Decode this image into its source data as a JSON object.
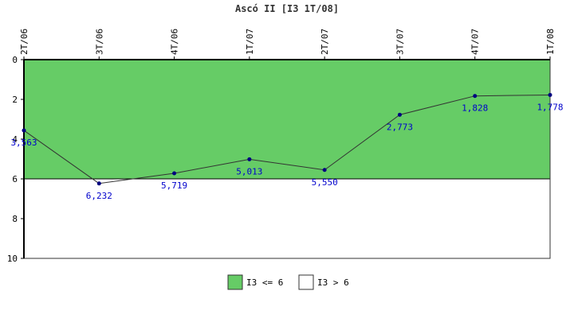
{
  "chart_data": {
    "type": "line",
    "title": "Ascó II [I3 1T/08]",
    "categories": [
      "2T/06",
      "3T/06",
      "4T/06",
      "1T/07",
      "2T/07",
      "3T/07",
      "4T/07",
      "1T/08"
    ],
    "series": [
      {
        "values": [
          3.563,
          6.232,
          5.719,
          5.013,
          5.55,
          2.773,
          1.828,
          1.778
        ],
        "labels": [
          "3,563",
          "6,232",
          "5,719",
          "5,013",
          "5,550",
          "2,773",
          "1,828",
          "1,778"
        ],
        "color": "#000080"
      }
    ],
    "y_axis": {
      "min": 0,
      "max": 10,
      "inverted": true,
      "ticks": [
        0,
        2,
        4,
        6,
        8,
        10
      ]
    },
    "x_tick_rotation": "vertical",
    "threshold": 6,
    "bands": [
      {
        "name": "I3 <= 6",
        "from": 0,
        "to": 6,
        "color": "#66cc66"
      },
      {
        "name": "I3 > 6",
        "from": 6,
        "to": 10,
        "color": "#ffffff"
      }
    ],
    "legend": {
      "position": "bottom-center",
      "items": [
        {
          "label": "I3 <= 6",
          "color": "#66cc66"
        },
        {
          "label": "I3 > 6",
          "color": "#ffffff"
        }
      ]
    },
    "grid": false
  }
}
